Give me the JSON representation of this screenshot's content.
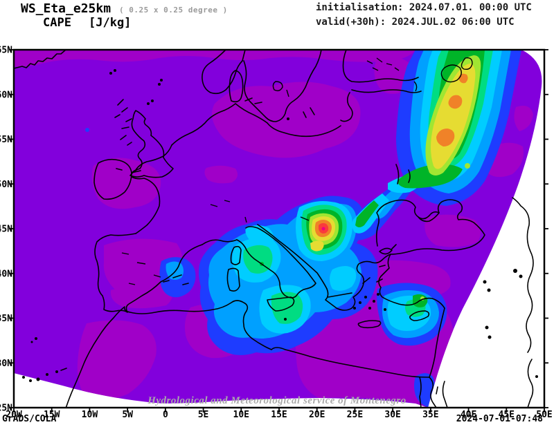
{
  "header": {
    "model": "WS_Eta_e25km",
    "resolution_note": "( 0.25 x 0.25 degree )",
    "variable": "CAPE",
    "units": "[J/kg]",
    "init_line": "initialisation: 2024.07.01. 00:00 UTC",
    "valid_line": "valid(+30h): 2024.JUL.02 06:00 UTC"
  },
  "footer": {
    "credit": "GrADS/COLA",
    "generated": "2024-07-01-07:48"
  },
  "watermark": "Hydrological and Meteorological service of Montenegro",
  "axes": {
    "lon_ticks": [
      "20W",
      "15W",
      "10W",
      "5W",
      "0",
      "5E",
      "10E",
      "15E",
      "20E",
      "25E",
      "30E",
      "35E",
      "40E",
      "45E",
      "50E"
    ],
    "lat_ticks": [
      "65N",
      "60N",
      "55N",
      "50N",
      "45N",
      "40N",
      "35N",
      "30N",
      "25N"
    ]
  },
  "chart_data": {
    "type": "heatmap",
    "subtype": "filled-contour-weather-map",
    "title": "WS_Eta_e25km CAPE [J/kg]",
    "variable": "CAPE",
    "units": "J/kg",
    "grid_resolution": "0.25 x 0.25 degree",
    "initialisation": "2024.07.01. 00:00 UTC",
    "valid": "2024.JUL.02 06:00 UTC (+30h)",
    "projection": "curved model domain (fan-shaped) over Europe / Mediterranean",
    "lon_range": [
      "20W",
      "50E"
    ],
    "lat_range": [
      "25N",
      "65N"
    ],
    "grid_lines": false,
    "colorbar_shown": false,
    "levels_labeled": false,
    "color_scale_low_to_high": [
      {
        "band": 1,
        "name": "magenta (lowest)",
        "hex": "#A000C8"
      },
      {
        "band": 2,
        "name": "purple (background)",
        "hex": "#8200DC"
      },
      {
        "band": 3,
        "name": "blue",
        "hex": "#1E3CFF"
      },
      {
        "band": 4,
        "name": "light blue",
        "hex": "#00A0FF"
      },
      {
        "band": 5,
        "name": "cyan",
        "hex": "#00CDFF"
      },
      {
        "band": 6,
        "name": "teal",
        "hex": "#00DC82"
      },
      {
        "band": 7,
        "name": "green",
        "hex": "#00B428"
      },
      {
        "band": 8,
        "name": "yellow-green",
        "hex": "#A0E632"
      },
      {
        "band": 9,
        "name": "yellow",
        "hex": "#E6DC32"
      },
      {
        "band": 10,
        "name": "orange",
        "hex": "#F08228"
      },
      {
        "band": 11,
        "name": "red",
        "hex": "#FA3C3C"
      },
      {
        "band": 12,
        "name": "pink (highest)",
        "hex": "#F00082"
      }
    ],
    "features": [
      {
        "region": "western Balkans, approx 20E 45N",
        "intensity": "absolute maximum",
        "bands": "pink/red core inside orange-yellow-green rings"
      },
      {
        "region": "elongated belt over western Russia toward NE corner, approx 35-45E 50-60N",
        "intensity": "high",
        "bands": "large yellow mass with orange cores, green/cyan/blue rings"
      },
      {
        "region": "central Mediterranean: Tyrrhenian, Adriatic, Ionian, Sicily to Libya coast",
        "intensity": "moderate",
        "bands": "cyan/teal with small green spots"
      },
      {
        "region": "eastern Mediterranean around Cyprus, approx 33E 35N",
        "intensity": "moderate",
        "bands": "cyan core with green / yellow-green spot"
      },
      {
        "region": "Balearic Islands, approx 3E 39N",
        "intensity": "low-moderate",
        "bands": "blue with light-blue core"
      },
      {
        "region": "NW Black Sea and band linking Balkans to Russian belt",
        "intensity": "low-moderate",
        "bands": "blue/cyan/green"
      },
      {
        "region": "Red Sea corner of domain",
        "intensity": "low-moderate",
        "bands": "blue"
      },
      {
        "region": "land areas: Iberia, North Africa, Anatolia, Ireland, Baltic, Middle East",
        "intensity": "minimal",
        "bands": "magenta"
      },
      {
        "region": "remaining background",
        "intensity": "very low",
        "bands": "purple"
      }
    ],
    "out_of_domain_corners": "white (top-right sliver, right side, bottom-left and bottom-right wedges); coastlines continue into white area (Caspian Sea, Red Sea, NE Africa)"
  }
}
